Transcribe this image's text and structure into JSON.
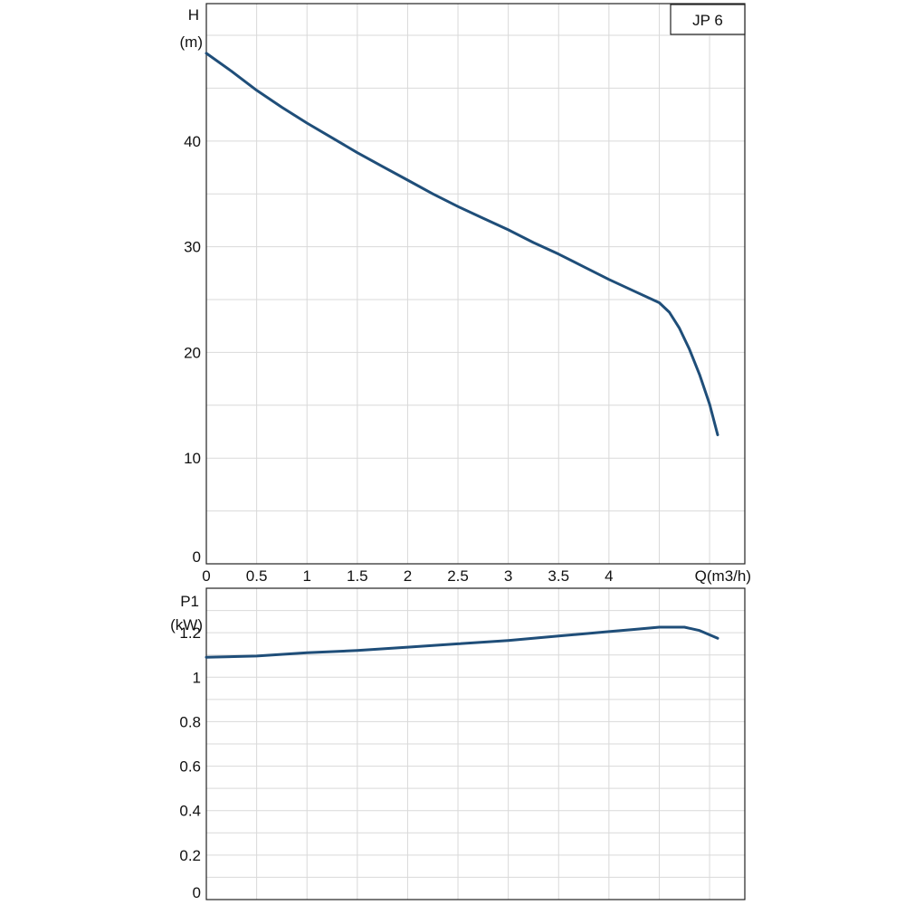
{
  "chart_data": [
    {
      "type": "line",
      "title": "JP 6",
      "ylabel": "H",
      "yunit": "(m)",
      "xlabel": "Q(m3/h)",
      "xlim": [
        0,
        5.35
      ],
      "ylim": [
        0,
        53
      ],
      "grid": true,
      "x_ticks": [
        0,
        0.5,
        1,
        1.5,
        2,
        2.5,
        3,
        3.5,
        4
      ],
      "x_tick_labels": [
        "0",
        "0.5",
        "1",
        "1.5",
        "2",
        "2.5",
        "3",
        "3.5",
        "4"
      ],
      "y_ticks": [
        0,
        10,
        20,
        30,
        40
      ],
      "y_tick_labels": [
        "0",
        "10",
        "20",
        "30",
        "40"
      ],
      "color": "#1f4e79",
      "series": [
        {
          "x": [
            0,
            0.25,
            0.5,
            0.75,
            1.0,
            1.25,
            1.5,
            1.75,
            2.0,
            2.25,
            2.5,
            2.75,
            3.0,
            3.25,
            3.5,
            3.75,
            4.0,
            4.25,
            4.5,
            4.6,
            4.7,
            4.8,
            4.9,
            5.0,
            5.08
          ],
          "y": [
            48.3,
            46.6,
            44.8,
            43.2,
            41.7,
            40.3,
            38.9,
            37.6,
            36.3,
            35.0,
            33.8,
            32.7,
            31.6,
            30.4,
            29.3,
            28.1,
            26.9,
            25.8,
            24.7,
            23.8,
            22.3,
            20.3,
            17.9,
            15.1,
            12.2
          ]
        }
      ]
    },
    {
      "type": "line",
      "ylabel": "P1",
      "yunit": "(kW)",
      "xlim": [
        0,
        5.35
      ],
      "ylim": [
        0,
        1.4
      ],
      "grid": true,
      "x_ticks": [
        0,
        0.5,
        1,
        1.5,
        2,
        2.5,
        3,
        3.5,
        4
      ],
      "y_ticks": [
        0,
        0.2,
        0.4,
        0.6,
        0.8,
        1,
        1.2
      ],
      "y_tick_labels": [
        "0",
        "0.2",
        "0.4",
        "0.6",
        "0.8",
        "1",
        "1.2"
      ],
      "color": "#1f4e79",
      "series": [
        {
          "x": [
            0,
            0.5,
            1.0,
            1.5,
            2.0,
            2.5,
            3.0,
            3.5,
            4.0,
            4.25,
            4.5,
            4.75,
            4.9,
            5.08
          ],
          "y": [
            1.09,
            1.095,
            1.11,
            1.12,
            1.135,
            1.15,
            1.165,
            1.185,
            1.205,
            1.215,
            1.225,
            1.225,
            1.21,
            1.175
          ]
        }
      ]
    }
  ]
}
